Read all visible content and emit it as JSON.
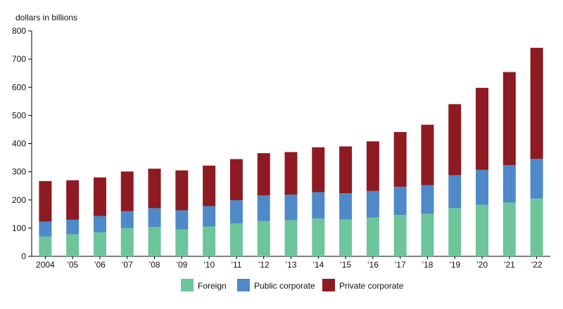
{
  "chart_data": {
    "type": "bar",
    "stacked": true,
    "ylabel": "dollars in billions",
    "ylim": [
      0,
      800
    ],
    "yticks": [
      0,
      100,
      200,
      300,
      400,
      500,
      600,
      700,
      800
    ],
    "grid": false,
    "legend_position": "bottom",
    "categories": [
      "2004",
      "’05",
      "’06",
      "’07",
      "’08",
      "’09",
      "’10",
      "’11",
      "’12",
      "’13",
      "’14",
      "’15",
      "’16",
      "’17",
      "’18",
      "’19",
      "’20",
      "’21",
      "’22"
    ],
    "series": [
      {
        "name": "Foreign",
        "color": "#6cc59b",
        "values": [
          70,
          78,
          86,
          100,
          104,
          96,
          106,
          117,
          125,
          128,
          134,
          131,
          138,
          147,
          151,
          171,
          183,
          191,
          205
        ]
      },
      {
        "name": "Public corporate",
        "color": "#4f89c8",
        "values": [
          53,
          52,
          57,
          60,
          67,
          67,
          72,
          82,
          91,
          91,
          94,
          93,
          94,
          100,
          102,
          117,
          124,
          133,
          141
        ]
      },
      {
        "name": "Private corporate",
        "color": "#8e1a22",
        "values": [
          144,
          140,
          137,
          141,
          140,
          142,
          144,
          146,
          150,
          151,
          159,
          166,
          176,
          194,
          214,
          252,
          291,
          330,
          394
        ]
      }
    ]
  }
}
